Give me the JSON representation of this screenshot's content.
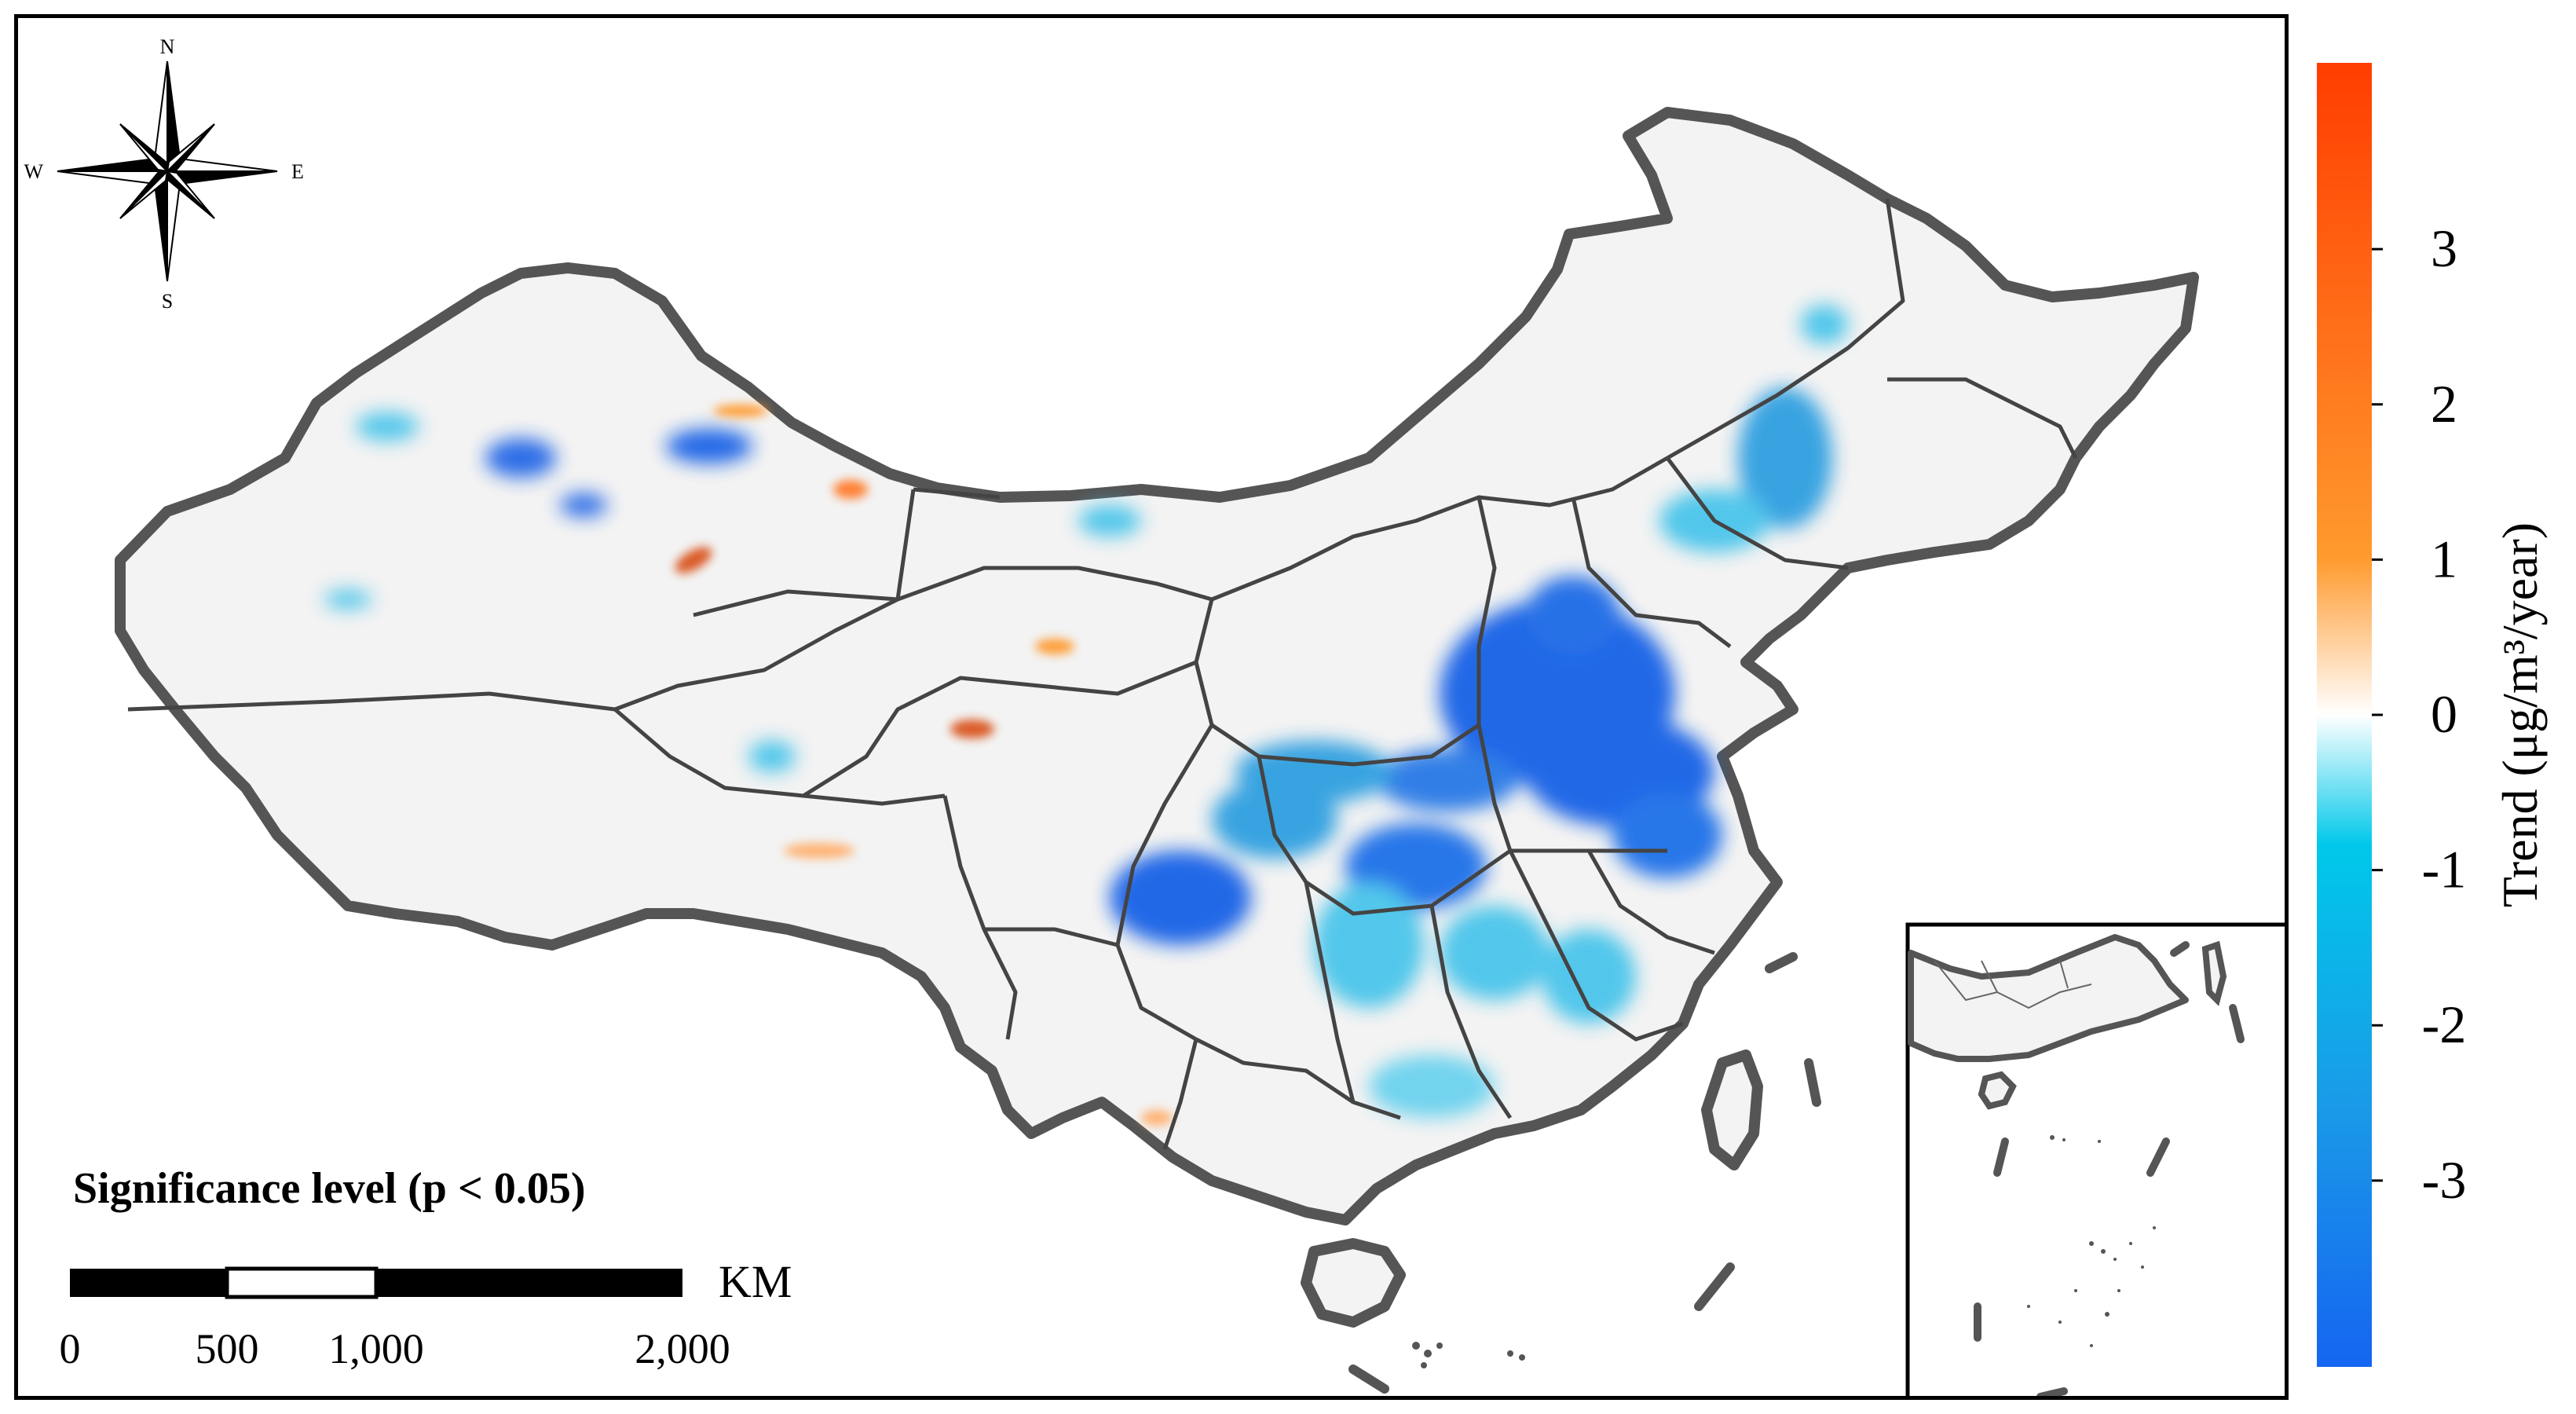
{
  "compass": {
    "north": "N",
    "south": "S",
    "east": "E",
    "west": "W"
  },
  "significance_label": "Significance level (p < 0.05)",
  "scale_bar": {
    "unit": "KM",
    "ticks": [
      "0",
      "500",
      "1,000",
      "2,000"
    ],
    "tick_values_km": [
      0,
      500,
      1000,
      2000
    ]
  },
  "legend": {
    "title": "Trend (μg/m³/year)",
    "ticks": [
      "3",
      "2",
      "1",
      "0",
      "-1",
      "-2",
      "-3"
    ],
    "tick_values": [
      3,
      2,
      1,
      0,
      -1,
      -2,
      -3
    ],
    "range": [
      -4.2,
      4.2
    ],
    "colors": {
      "max": "#ff3d00",
      "high": "#ff9a2e",
      "zero": "#ffffff",
      "low": "#00c8ea",
      "mid_low": "#1a9ae8",
      "min": "#1565f0"
    }
  },
  "colors": {
    "land": "#f3f3f3",
    "border_outer": "#555555",
    "border_province": "#444444",
    "decrease_strong": "#1560e6",
    "decrease_mid": "#2f9fe0",
    "decrease_light": "#48c4ea",
    "increase": "#ff7a2a",
    "increase_strong": "#d9531e"
  }
}
